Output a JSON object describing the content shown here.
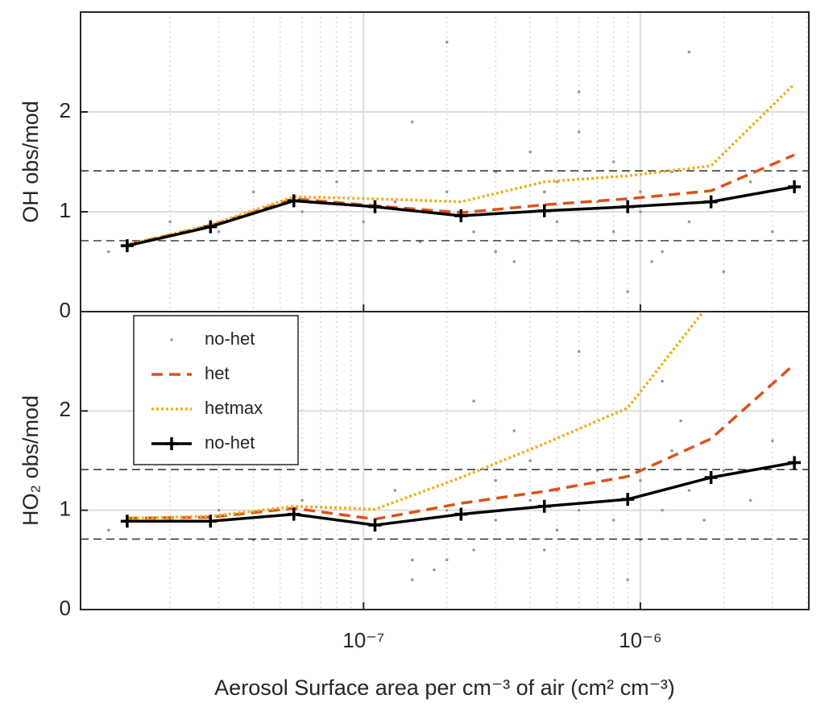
{
  "chart_data": [
    {
      "type": "line",
      "ylabel": "OH obs/mod",
      "log_x": true,
      "grid": true,
      "xlim": [
        9.5e-09,
        4.06e-06
      ],
      "xticks": [
        1e-07,
        1e-06
      ],
      "xminorticks": [
        2e-08,
        3e-08,
        4e-08,
        5e-08,
        6e-08,
        7e-08,
        8e-08,
        9e-08,
        2e-07,
        3e-07,
        4e-07,
        5e-07,
        6e-07,
        7e-07,
        8e-07,
        9e-07,
        2e-06,
        3e-06,
        4e-06
      ],
      "ylim": [
        0,
        3
      ],
      "yticks": [
        0,
        1,
        2
      ],
      "reference_lines": [
        0.71,
        1.41
      ],
      "legend": false,
      "scatter": {
        "name": "no-het",
        "color": "#999999",
        "x": [
          1.2e-08,
          2e-08,
          3e-08,
          4e-08,
          6e-08,
          8e-08,
          1e-07,
          1.3e-07,
          1.6e-07,
          2e-07,
          2.5e-07,
          3e-07,
          3e-07,
          4e-07,
          4e-07,
          5e-07,
          5e-07,
          6e-07,
          7e-07,
          8e-07,
          8e-07,
          1e-06,
          1e-06,
          1.2e-06,
          1.3e-06,
          1.5e-06,
          1.7e-06,
          2e-06,
          2.5e-06,
          3e-06,
          2e-07,
          6e-07,
          1.5e-06,
          9e-07,
          1.5e-07,
          3.5e-07,
          6e-07,
          1.1e-06,
          2.2e-07,
          4.5e-07
        ],
        "values": [
          0.6,
          0.9,
          0.8,
          1.2,
          1.0,
          1.3,
          0.9,
          1.1,
          0.7,
          1.2,
          0.8,
          1.4,
          0.6,
          1.0,
          1.6,
          0.9,
          1.3,
          0.7,
          1.1,
          1.5,
          0.8,
          1.0,
          1.2,
          0.6,
          1.4,
          0.9,
          1.1,
          0.4,
          1.3,
          0.8,
          2.7,
          2.2,
          2.6,
          0.2,
          1.9,
          0.5,
          1.8,
          0.5,
          1.0,
          1.2
        ]
      },
      "x": [
        1.4e-08,
        2.8e-08,
        5.6e-08,
        1.1e-07,
        2.25e-07,
        4.5e-07,
        9e-07,
        1.8e-06,
        3.6e-06
      ],
      "series": [
        {
          "name": "het",
          "color": "#d95319",
          "style": "dashed",
          "values": [
            0.67,
            0.86,
            1.13,
            1.06,
            0.99,
            1.07,
            1.13,
            1.21,
            1.57
          ]
        },
        {
          "name": "hetmax",
          "color": "#edb120",
          "style": "dotted",
          "values": [
            0.67,
            0.87,
            1.15,
            1.13,
            1.1,
            1.3,
            1.36,
            1.46,
            2.28
          ]
        },
        {
          "name": "no-het",
          "color": "#000000",
          "style": "solid-plus",
          "values": [
            0.66,
            0.85,
            1.11,
            1.05,
            0.96,
            1.01,
            1.05,
            1.1,
            1.25
          ]
        }
      ]
    },
    {
      "type": "line",
      "ylabel": "HO₂ obs/mod",
      "xlabel": "Aerosol Surface area per cm⁻³ of air (cm² cm⁻³)",
      "log_x": true,
      "grid": true,
      "xlim": [
        9.5e-09,
        4.06e-06
      ],
      "xticks": [
        {
          "value": 1e-07,
          "label": "10⁻⁷"
        },
        {
          "value": 1e-06,
          "label": "10⁻⁶"
        }
      ],
      "xminorticks": [
        2e-08,
        3e-08,
        4e-08,
        5e-08,
        6e-08,
        7e-08,
        8e-08,
        9e-08,
        2e-07,
        3e-07,
        4e-07,
        5e-07,
        6e-07,
        7e-07,
        8e-07,
        9e-07,
        2e-06,
        3e-06,
        4e-06
      ],
      "ylim": [
        0,
        3
      ],
      "yticks": [
        0,
        1,
        2
      ],
      "reference_lines": [
        0.71,
        1.41
      ],
      "legend": "upper left",
      "scatter": {
        "name": "no-het",
        "color": "#999999",
        "x": [
          1.2e-08,
          2e-08,
          3e-08,
          4e-08,
          6e-08,
          8e-08,
          1.1e-07,
          1.3e-07,
          1.5e-07,
          1.8e-07,
          2e-07,
          2.5e-07,
          3e-07,
          3e-07,
          4e-07,
          4e-07,
          5e-07,
          5e-07,
          6e-07,
          7e-07,
          8e-07,
          8e-07,
          1e-06,
          1e-06,
          1.2e-06,
          1.3e-06,
          1.5e-06,
          1.7e-06,
          2e-06,
          2.5e-06,
          3e-06,
          1.5e-07,
          2e-07,
          2.5e-07,
          6e-07,
          9e-07,
          3.5e-07,
          1.2e-06,
          4.5e-07,
          1.4e-06
        ],
        "values": [
          0.8,
          0.9,
          1.0,
          0.7,
          1.1,
          0.9,
          0.8,
          1.2,
          0.5,
          0.4,
          1.0,
          0.6,
          1.3,
          0.9,
          1.1,
          1.5,
          0.8,
          1.2,
          1.0,
          1.4,
          0.9,
          1.1,
          1.3,
          0.7,
          1.0,
          1.6,
          1.2,
          0.9,
          1.4,
          1.1,
          1.7,
          0.3,
          0.5,
          2.1,
          2.6,
          0.3,
          1.8,
          2.3,
          0.6,
          1.9
        ]
      },
      "x": [
        1.4e-08,
        2.8e-08,
        5.6e-08,
        1.1e-07,
        2.25e-07,
        4.5e-07,
        9e-07,
        1.8e-06,
        3.6e-06
      ],
      "series": [
        {
          "name": "het",
          "color": "#d95319",
          "style": "dashed",
          "values": [
            0.92,
            0.93,
            1.02,
            0.91,
            1.07,
            1.19,
            1.34,
            1.72,
            2.47
          ]
        },
        {
          "name": "hetmax",
          "color": "#edb120",
          "style": "dotted",
          "values": [
            0.92,
            0.94,
            1.04,
            1.01,
            1.33,
            1.67,
            2.03,
            3.1,
            null
          ]
        },
        {
          "name": "no-het",
          "color": "#000000",
          "style": "solid-plus",
          "values": [
            0.89,
            0.89,
            0.96,
            0.85,
            0.96,
            1.04,
            1.11,
            1.33,
            1.48
          ]
        }
      ]
    }
  ]
}
